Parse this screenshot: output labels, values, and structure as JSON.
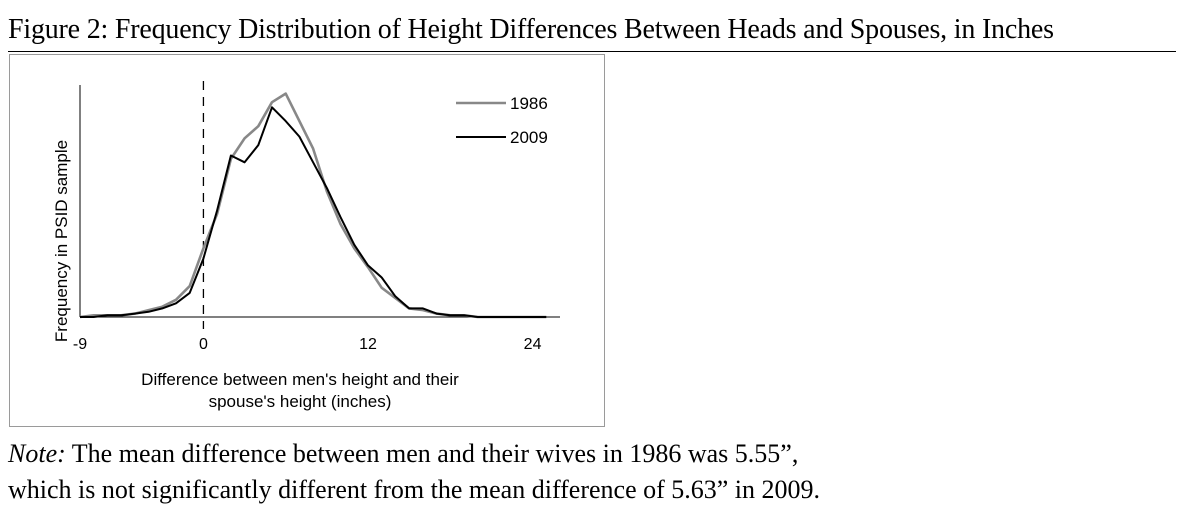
{
  "figure": {
    "title": "Figure 2: Frequency Distribution of Height Differences Between Heads and Spouses, in Inches"
  },
  "note": {
    "lead": "Note:",
    "line1": "The mean difference between men and their wives in 1986 was 5.55”,",
    "line2": "which is not significantly different from the mean difference of 5.63” in 2009."
  },
  "chart_data": {
    "type": "line",
    "title": "",
    "xlabel_lines": [
      "Difference between men's height and their",
      "spouse's height (inches)"
    ],
    "ylabel": "Frequency in PSID sample",
    "xlim": [
      -9,
      26
    ],
    "ylim": [
      0,
      0.135
    ],
    "x_tick_values": [
      -9,
      0,
      12,
      24
    ],
    "x_tick_labels": [
      "-9",
      "0",
      "12",
      "24"
    ],
    "grid": false,
    "legend_position": "top-right",
    "reference_line": {
      "x": 0,
      "style": "dashed"
    },
    "series": [
      {
        "name": "1986",
        "color": "#888888",
        "x": [
          -9,
          -8,
          -7,
          -6,
          -5,
          -4,
          -3,
          -2,
          -1,
          0,
          1,
          2,
          3,
          4,
          5,
          6,
          7,
          8,
          9,
          10,
          11,
          12,
          13,
          14,
          15,
          16,
          17,
          18,
          19,
          20,
          21,
          22,
          23,
          24,
          25
        ],
        "values": [
          0.0,
          0.001,
          0.001,
          0.001,
          0.002,
          0.004,
          0.006,
          0.01,
          0.018,
          0.04,
          0.06,
          0.092,
          0.104,
          0.111,
          0.125,
          0.13,
          0.114,
          0.098,
          0.073,
          0.054,
          0.04,
          0.029,
          0.017,
          0.011,
          0.005,
          0.004,
          0.002,
          0.001,
          0.001,
          0.0,
          0.0,
          0.0,
          0.0,
          0.0,
          0.0
        ]
      },
      {
        "name": "2009",
        "color": "#000000",
        "x": [
          -9,
          -8,
          -7,
          -6,
          -5,
          -4,
          -3,
          -2,
          -1,
          0,
          1,
          2,
          3,
          4,
          5,
          6,
          7,
          8,
          9,
          10,
          11,
          12,
          13,
          14,
          15,
          16,
          17,
          18,
          19,
          20,
          21,
          22,
          23,
          24,
          25
        ],
        "values": [
          0.0,
          0.0,
          0.001,
          0.001,
          0.002,
          0.003,
          0.005,
          0.008,
          0.014,
          0.034,
          0.062,
          0.094,
          0.09,
          0.1,
          0.122,
          0.114,
          0.105,
          0.09,
          0.075,
          0.058,
          0.042,
          0.03,
          0.023,
          0.012,
          0.005,
          0.005,
          0.002,
          0.001,
          0.001,
          0.0,
          0.0,
          0.0,
          0.0,
          0.0,
          0.0
        ]
      }
    ]
  }
}
